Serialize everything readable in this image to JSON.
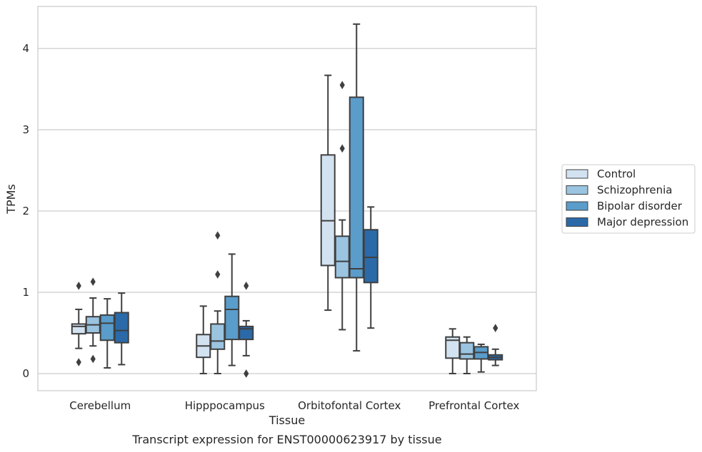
{
  "chart_data": {
    "type": "box",
    "title": "Transcript expression for ENST00000623917 by tissue",
    "xlabel": "Tissue",
    "ylabel": "TPMs",
    "ylim": [
      -0.2,
      4.5
    ],
    "yticks": [
      0,
      1,
      2,
      3,
      4
    ],
    "grid": "horizontal",
    "legend_position": "right",
    "categories": [
      "Cerebellum",
      "Hipppocampus",
      "Orbitofontal Cortex",
      "Prefrontal Cortex"
    ],
    "series": [
      {
        "name": "Control",
        "color": "#d2e2f1",
        "boxes": [
          {
            "whislo": 0.31,
            "q1": 0.49,
            "med": 0.58,
            "q3": 0.61,
            "whishi": 0.79,
            "fliers": [
              0.14,
              1.08
            ]
          },
          {
            "whislo": 0.0,
            "q1": 0.2,
            "med": 0.34,
            "q3": 0.48,
            "whishi": 0.83,
            "fliers": []
          },
          {
            "whislo": 0.78,
            "q1": 1.33,
            "med": 1.88,
            "q3": 2.69,
            "whishi": 3.67,
            "fliers": []
          },
          {
            "whislo": 0.0,
            "q1": 0.19,
            "med": 0.41,
            "q3": 0.45,
            "whishi": 0.55,
            "fliers": []
          }
        ]
      },
      {
        "name": "Schizophrenia",
        "color": "#9ac4e0",
        "boxes": [
          {
            "whislo": 0.34,
            "q1": 0.5,
            "med": 0.6,
            "q3": 0.7,
            "whishi": 0.93,
            "fliers": [
              0.18,
              1.13
            ]
          },
          {
            "whislo": 0.0,
            "q1": 0.3,
            "med": 0.4,
            "q3": 0.61,
            "whishi": 0.77,
            "fliers": [
              1.22,
              1.7
            ]
          },
          {
            "whislo": 0.54,
            "q1": 1.18,
            "med": 1.38,
            "q3": 1.69,
            "whishi": 1.89,
            "fliers": [
              2.77,
              3.55
            ]
          },
          {
            "whislo": 0.0,
            "q1": 0.18,
            "med": 0.24,
            "q3": 0.38,
            "whishi": 0.45,
            "fliers": []
          }
        ]
      },
      {
        "name": "Bipolar disorder",
        "color": "#5a9cca",
        "boxes": [
          {
            "whislo": 0.07,
            "q1": 0.41,
            "med": 0.62,
            "q3": 0.72,
            "whishi": 0.92,
            "fliers": []
          },
          {
            "whislo": 0.1,
            "q1": 0.42,
            "med": 0.79,
            "q3": 0.95,
            "whishi": 1.47,
            "fliers": []
          },
          {
            "whislo": 0.28,
            "q1": 1.18,
            "med": 1.29,
            "q3": 3.4,
            "whishi": 4.3,
            "fliers": []
          },
          {
            "whislo": 0.02,
            "q1": 0.18,
            "med": 0.26,
            "q3": 0.33,
            "whishi": 0.36,
            "fliers": []
          }
        ]
      },
      {
        "name": "Major depression",
        "color": "#2b6aa8",
        "boxes": [
          {
            "whislo": 0.11,
            "q1": 0.38,
            "med": 0.53,
            "q3": 0.75,
            "whishi": 0.99,
            "fliers": []
          },
          {
            "whislo": 0.22,
            "q1": 0.42,
            "med": 0.55,
            "q3": 0.58,
            "whishi": 0.65,
            "fliers": [
              0.0,
              1.08
            ]
          },
          {
            "whislo": 0.56,
            "q1": 1.12,
            "med": 1.43,
            "q3": 1.77,
            "whishi": 2.05,
            "fliers": []
          },
          {
            "whislo": 0.1,
            "q1": 0.17,
            "med": 0.2,
            "q3": 0.23,
            "whishi": 0.3,
            "fliers": [
              0.56
            ]
          }
        ]
      }
    ]
  }
}
